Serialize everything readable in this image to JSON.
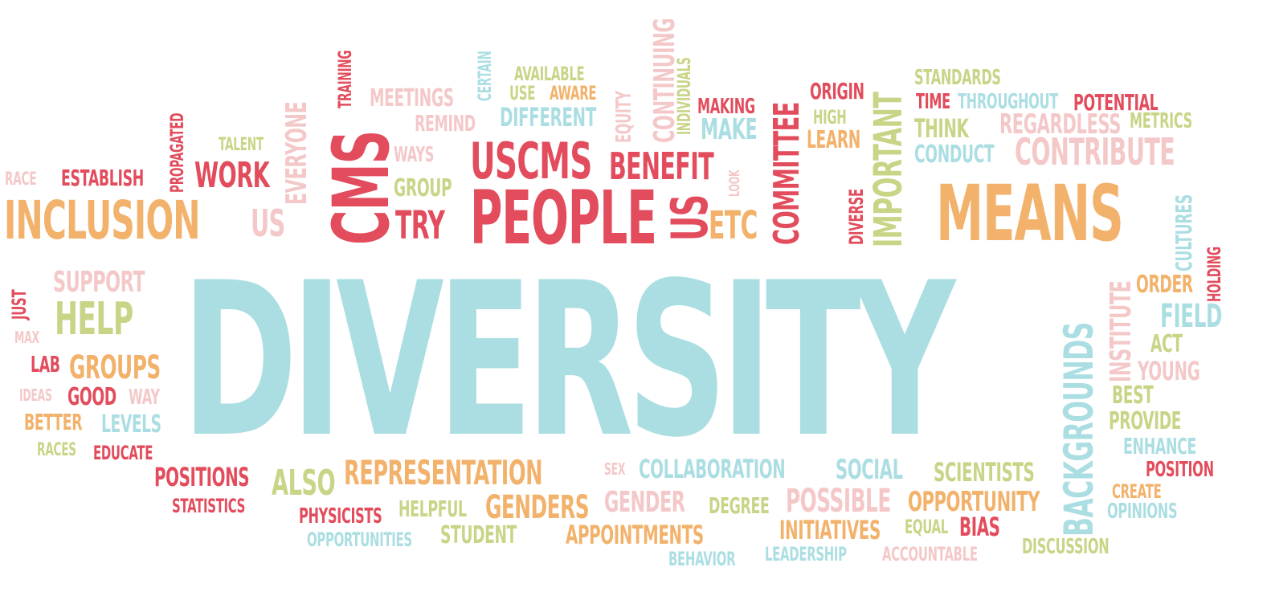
{
  "words": [
    {
      "text": "DIVERSITY",
      "color": "#abdee2"
    },
    {
      "text": "PEOPLE",
      "color": "#e24c5c"
    },
    {
      "text": "MEANS",
      "color": "#f2b26b"
    },
    {
      "text": "INCLUSION",
      "color": "#f2b26b"
    },
    {
      "text": "CMS",
      "color": "#e24c5c"
    },
    {
      "text": "USCMS",
      "color": "#e24c5c"
    },
    {
      "text": "BACKGROUNDS",
      "color": "#abdee2"
    },
    {
      "text": "IMPORTANT",
      "color": "#c9d487"
    },
    {
      "text": "COMMITTEE",
      "color": "#e24c5c"
    },
    {
      "text": "REPRESENTATION",
      "color": "#f2b26b"
    },
    {
      "text": "COLLABORATION",
      "color": "#abdee2"
    },
    {
      "text": "HELP",
      "color": "#c9d487"
    },
    {
      "text": "TRY",
      "color": "#e24c5c"
    },
    {
      "text": "US",
      "color": "#e24c5c"
    },
    {
      "text": "US",
      "color": "#f4c8c8"
    },
    {
      "text": "ETC",
      "color": "#f2b26b"
    },
    {
      "text": "BENEFIT",
      "color": "#e24c5c"
    },
    {
      "text": "WORK",
      "color": "#e24c5c"
    },
    {
      "text": "CONTRIBUTE",
      "color": "#f4c8c8"
    },
    {
      "text": "ESTABLISH",
      "color": "#e24c5c"
    },
    {
      "text": "PROPAGATED",
      "color": "#e24c5c"
    },
    {
      "text": "RACE",
      "color": "#f4c8c8"
    },
    {
      "text": "TALENT",
      "color": "#c9d487"
    },
    {
      "text": "EVERYONE",
      "color": "#f4c8c8"
    },
    {
      "text": "MEETINGS",
      "color": "#f4c8c8"
    },
    {
      "text": "TRAINING",
      "color": "#e24c5c"
    },
    {
      "text": "REMIND",
      "color": "#f4c8c8"
    },
    {
      "text": "WAYS",
      "color": "#f4c8c8"
    },
    {
      "text": "GROUP",
      "color": "#c9d487"
    },
    {
      "text": "CERTAIN",
      "color": "#abdee2"
    },
    {
      "text": "AVAILABLE",
      "color": "#c9d487"
    },
    {
      "text": "USE",
      "color": "#c9d487"
    },
    {
      "text": "AWARE",
      "color": "#f2b26b"
    },
    {
      "text": "DIFFERENT",
      "color": "#abdee2"
    },
    {
      "text": "EQUITY",
      "color": "#f4c8c8"
    },
    {
      "text": "CONTINUING",
      "color": "#f4c8c8"
    },
    {
      "text": "INDIVIDUALS",
      "color": "#c9d487"
    },
    {
      "text": "MAKING",
      "color": "#e24c5c"
    },
    {
      "text": "MAKE",
      "color": "#abdee2"
    },
    {
      "text": "LOOK",
      "color": "#f4c8c8"
    },
    {
      "text": "ORIGIN",
      "color": "#e24c5c"
    },
    {
      "text": "HIGH",
      "color": "#c9d487"
    },
    {
      "text": "LEARN",
      "color": "#f2b26b"
    },
    {
      "text": "DIVERSE",
      "color": "#e24c5c"
    },
    {
      "text": "STANDARDS",
      "color": "#c9d487"
    },
    {
      "text": "TIME",
      "color": "#e24c5c"
    },
    {
      "text": "THROUGHOUT",
      "color": "#abdee2"
    },
    {
      "text": "POTENTIAL",
      "color": "#e24c5c"
    },
    {
      "text": "THINK",
      "color": "#c9d487"
    },
    {
      "text": "REGARDLESS",
      "color": "#f4c8c8"
    },
    {
      "text": "METRICS",
      "color": "#c9d487"
    },
    {
      "text": "CONDUCT",
      "color": "#abdee2"
    },
    {
      "text": "CULTURES",
      "color": "#abdee2"
    },
    {
      "text": "HOLDING",
      "color": "#e24c5c"
    },
    {
      "text": "INSTITUTE",
      "color": "#f4c8c8"
    },
    {
      "text": "ORDER",
      "color": "#f2b26b"
    },
    {
      "text": "FIELD",
      "color": "#abdee2"
    },
    {
      "text": "ACT",
      "color": "#c9d487"
    },
    {
      "text": "YOUNG",
      "color": "#f4c8c8"
    },
    {
      "text": "BEST",
      "color": "#c9d487"
    },
    {
      "text": "PROVIDE",
      "color": "#c9d487"
    },
    {
      "text": "ENHANCE",
      "color": "#abdee2"
    },
    {
      "text": "POSITION",
      "color": "#e24c5c"
    },
    {
      "text": "CREATE",
      "color": "#f2b26b"
    },
    {
      "text": "OPINIONS",
      "color": "#abdee2"
    },
    {
      "text": "DISCUSSION",
      "color": "#c9d487"
    },
    {
      "text": "JUST",
      "color": "#e24c5c"
    },
    {
      "text": "SUPPORT",
      "color": "#f4c8c8"
    },
    {
      "text": "MAX",
      "color": "#f4c8c8"
    },
    {
      "text": "LAB",
      "color": "#e24c5c"
    },
    {
      "text": "GROUPS",
      "color": "#f2b26b"
    },
    {
      "text": "IDEAS",
      "color": "#f4c8c8"
    },
    {
      "text": "GOOD",
      "color": "#e24c5c"
    },
    {
      "text": "WAY",
      "color": "#f4c8c8"
    },
    {
      "text": "BETTER",
      "color": "#f2b26b"
    },
    {
      "text": "LEVELS",
      "color": "#abdee2"
    },
    {
      "text": "RACES",
      "color": "#c9d487"
    },
    {
      "text": "EDUCATE",
      "color": "#e24c5c"
    },
    {
      "text": "POSITIONS",
      "color": "#e24c5c"
    },
    {
      "text": "ALSO",
      "color": "#c9d487"
    },
    {
      "text": "STATISTICS",
      "color": "#e24c5c"
    },
    {
      "text": "PHYSICISTS",
      "color": "#e24c5c"
    },
    {
      "text": "HELPFUL",
      "color": "#c9d487"
    },
    {
      "text": "GENDERS",
      "color": "#f2b26b"
    },
    {
      "text": "OPPORTUNITIES",
      "color": "#abdee2"
    },
    {
      "text": "STUDENT",
      "color": "#c9d487"
    },
    {
      "text": "APPOINTMENTS",
      "color": "#f2b26b"
    },
    {
      "text": "SEX",
      "color": "#f4c8c8"
    },
    {
      "text": "GENDER",
      "color": "#f4c8c8"
    },
    {
      "text": "DEGREE",
      "color": "#c9d487"
    },
    {
      "text": "BEHAVIOR",
      "color": "#abdee2"
    },
    {
      "text": "SOCIAL",
      "color": "#abdee2"
    },
    {
      "text": "POSSIBLE",
      "color": "#f4c8c8"
    },
    {
      "text": "INITIATIVES",
      "color": "#f2b26b"
    },
    {
      "text": "LEADERSHIP",
      "color": "#abdee2"
    },
    {
      "text": "SCIENTISTS",
      "color": "#c9d487"
    },
    {
      "text": "OPPORTUNITY",
      "color": "#f2b26b"
    },
    {
      "text": "EQUAL",
      "color": "#c9d487"
    },
    {
      "text": "BIAS",
      "color": "#e24c5c"
    },
    {
      "text": "ACCOUNTABLE",
      "color": "#f4c8c8"
    }
  ]
}
